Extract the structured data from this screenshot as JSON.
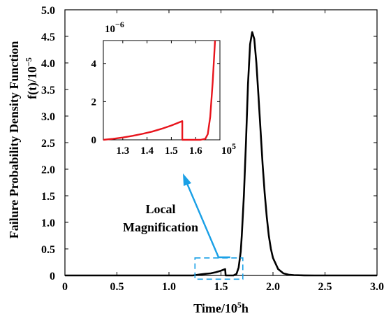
{
  "chart_data": {
    "type": "line",
    "title": "",
    "xlabel": {
      "text": "Time/10",
      "sup": "5",
      "suffix": "h"
    },
    "ylabel": {
      "line1": "Failure Probability Density Function",
      "line2_main": "f(t)/10",
      "line2_sup": "−5"
    },
    "xlim": [
      0,
      3.0
    ],
    "ylim": [
      0,
      5.0
    ],
    "x_ticks": [
      "0",
      "0.5",
      "1.0",
      "1.5",
      "2.0",
      "2.5",
      "3.0"
    ],
    "y_ticks": [
      "0",
      "0.5",
      "1.0",
      "1.5",
      "2.0",
      "2.5",
      "3.0",
      "3.5",
      "4.0",
      "4.5",
      "5.0"
    ],
    "series": [
      {
        "color": "#000000",
        "x": [
          0,
          1.0,
          1.23,
          1.3,
          1.35,
          1.4,
          1.45,
          1.5,
          1.54,
          1.545,
          1.58,
          1.62,
          1.65,
          1.67,
          1.69,
          1.7,
          1.72,
          1.74,
          1.76,
          1.78,
          1.8,
          1.82,
          1.84,
          1.86,
          1.88,
          1.9,
          1.92,
          1.94,
          1.96,
          1.98,
          2.0,
          2.05,
          2.1,
          2.15,
          2.2,
          2.3,
          2.4,
          3.0
        ],
        "y": [
          0,
          0,
          0.0,
          0.02,
          0.03,
          0.04,
          0.06,
          0.09,
          0.12,
          0.0,
          0.0,
          0.0,
          0.03,
          0.15,
          0.45,
          0.75,
          1.5,
          2.5,
          3.6,
          4.35,
          4.58,
          4.45,
          4.0,
          3.4,
          2.75,
          2.1,
          1.55,
          1.1,
          0.75,
          0.5,
          0.33,
          0.12,
          0.04,
          0.015,
          0.006,
          0.001,
          0,
          0
        ]
      }
    ],
    "inset": {
      "type": "line",
      "y_multiplier_label": {
        "base": "10",
        "sup": "−6"
      },
      "x_multiplier_label": {
        "base": "10",
        "sup": "5"
      },
      "xlim": [
        1.22,
        1.7
      ],
      "ylim": [
        0,
        5.2
      ],
      "x_ticks": [
        "1.3",
        "1.4",
        "1.5",
        "1.6"
      ],
      "y_ticks": [
        "0",
        "2",
        "4"
      ],
      "series": [
        {
          "color": "#e8141c",
          "x": [
            1.22,
            1.26,
            1.3,
            1.34,
            1.38,
            1.42,
            1.46,
            1.5,
            1.545,
            1.545,
            1.57,
            1.6,
            1.62,
            1.64,
            1.65,
            1.66,
            1.67,
            1.68
          ],
          "y": [
            0.0,
            0.05,
            0.12,
            0.21,
            0.31,
            0.43,
            0.58,
            0.75,
            0.98,
            0.0,
            0.0,
            0.0,
            0.0,
            0.05,
            0.3,
            1.2,
            3.0,
            5.2
          ]
        }
      ]
    },
    "annotation": {
      "line1": "Local",
      "line2": "Magnification",
      "color": "#1aa0e6"
    }
  }
}
